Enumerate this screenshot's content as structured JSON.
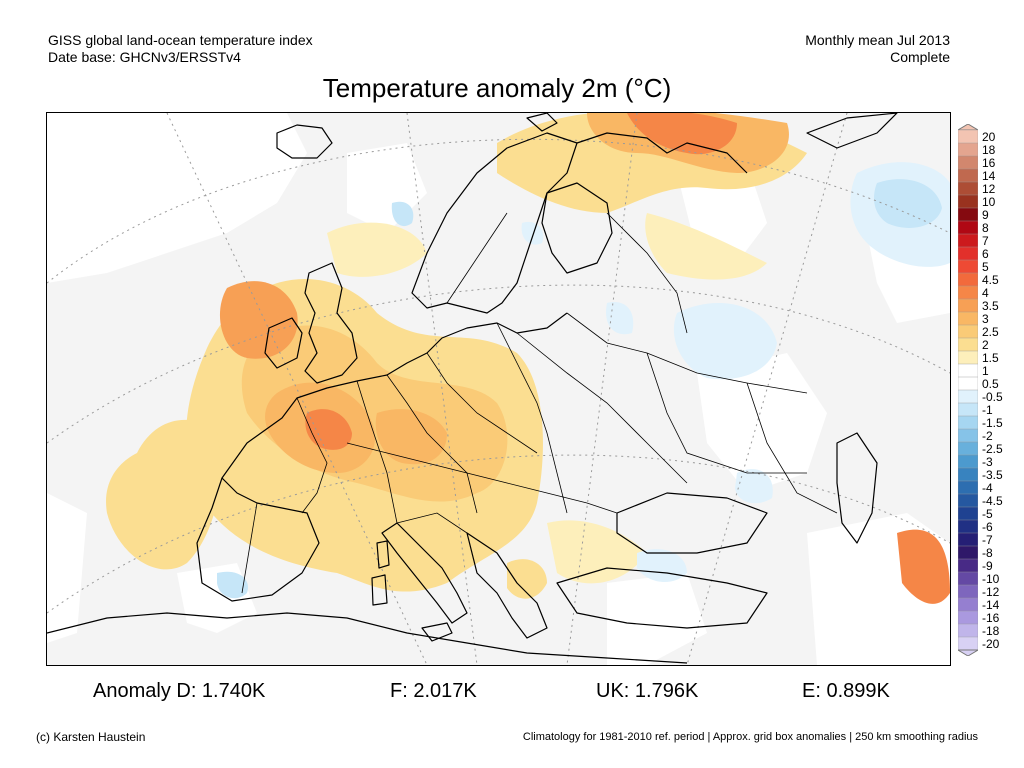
{
  "header": {
    "left_line1": "GISS global land-ocean temperature index",
    "left_line2": "Date base: GHCNv3/ERSSTv4",
    "right_line1": "Monthly mean Jul 2013",
    "right_line2": "Complete"
  },
  "title": "Temperature anomaly 2m (°C)",
  "colorbar": {
    "labels": [
      "20",
      "18",
      "16",
      "14",
      "12",
      "10",
      "9",
      "8",
      "7",
      "6",
      "5",
      "4.5",
      "4",
      "3.5",
      "3",
      "2.5",
      "2",
      "1.5",
      "1",
      "0.5",
      "-0.5",
      "-1",
      "-1.5",
      "-2",
      "-2.5",
      "-3",
      "-3.5",
      "-4",
      "-4.5",
      "-5",
      "-6",
      "-7",
      "-8",
      "-9",
      "-10",
      "-12",
      "-14",
      "-16",
      "-18",
      "-20"
    ],
    "colors": [
      "#f3c4b2",
      "#e4a58f",
      "#d2876e",
      "#c0694f",
      "#ad4d35",
      "#99321f",
      "#850a10",
      "#b00814",
      "#cc1a1d",
      "#e2302b",
      "#ee4a34",
      "#f26a3c",
      "#f58647",
      "#f7a055",
      "#f9b764",
      "#facb77",
      "#fbde91",
      "#fdefbb",
      "#ffffff",
      "#ffffff",
      "#e1f2fc",
      "#c6e6f8",
      "#a6d6f1",
      "#86c3e8",
      "#68b0dc",
      "#4c9ace",
      "#3883bf",
      "#2d6eb0",
      "#2558a0",
      "#1f4291",
      "#203084",
      "#251f75",
      "#2f1869",
      "#482a86",
      "#6449a4",
      "#7e66bd",
      "#957fd0",
      "#aa99df",
      "#c0b5ea",
      "#d8d1f4"
    ],
    "unit": "°C"
  },
  "stats": {
    "anomaly_d": "Anomaly D: 1.740K",
    "f": "F: 2.017K",
    "uk": "UK: 1.796K",
    "e": "E: 0.899K"
  },
  "footer": {
    "left": "(c) Karsten Haustein",
    "right": "Climatology for 1981-2010 ref. period | Approx. grid box anomalies | 250 km smoothing radius"
  }
}
